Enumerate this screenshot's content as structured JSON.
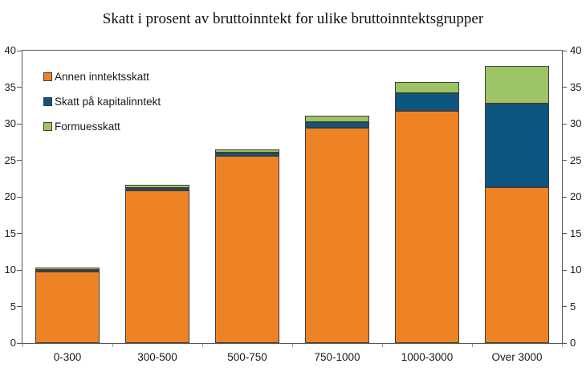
{
  "chart_data": {
    "type": "bar",
    "stacked": true,
    "title": "Skatt i prosent av bruttoinntekt for ulike bruttoinntektsgrupper",
    "categories": [
      "0-300",
      "300-500",
      "500-750",
      "750-1000",
      "1000-3000",
      "Over 3000"
    ],
    "series": [
      {
        "key": "annen-inntektsskatt",
        "name": "Annen inntektsskatt",
        "color": "#EE8326",
        "values": [
          9.8,
          20.9,
          25.6,
          29.5,
          31.8,
          21.3
        ]
      },
      {
        "key": "skatt-pa-kapitalinntekt",
        "name": "Skatt på kapitalinntekt",
        "color": "#0D5680",
        "values": [
          0.2,
          0.3,
          0.4,
          0.7,
          2.4,
          11.4
        ]
      },
      {
        "key": "formuesskatt",
        "name": "Formuesskatt",
        "color": "#9CC465",
        "values": [
          0.3,
          0.4,
          0.5,
          0.9,
          1.5,
          5.2
        ]
      }
    ],
    "y_ticks": [
      0,
      5,
      10,
      15,
      20,
      25,
      30,
      35,
      40
    ],
    "ylim": [
      0,
      40
    ],
    "ylabel": "",
    "xlabel": "",
    "grid": false,
    "legend_position": "top-left",
    "axis_color": "#565656",
    "segment_border_color": "#3d3d3d",
    "background_color": "#ffffff"
  }
}
